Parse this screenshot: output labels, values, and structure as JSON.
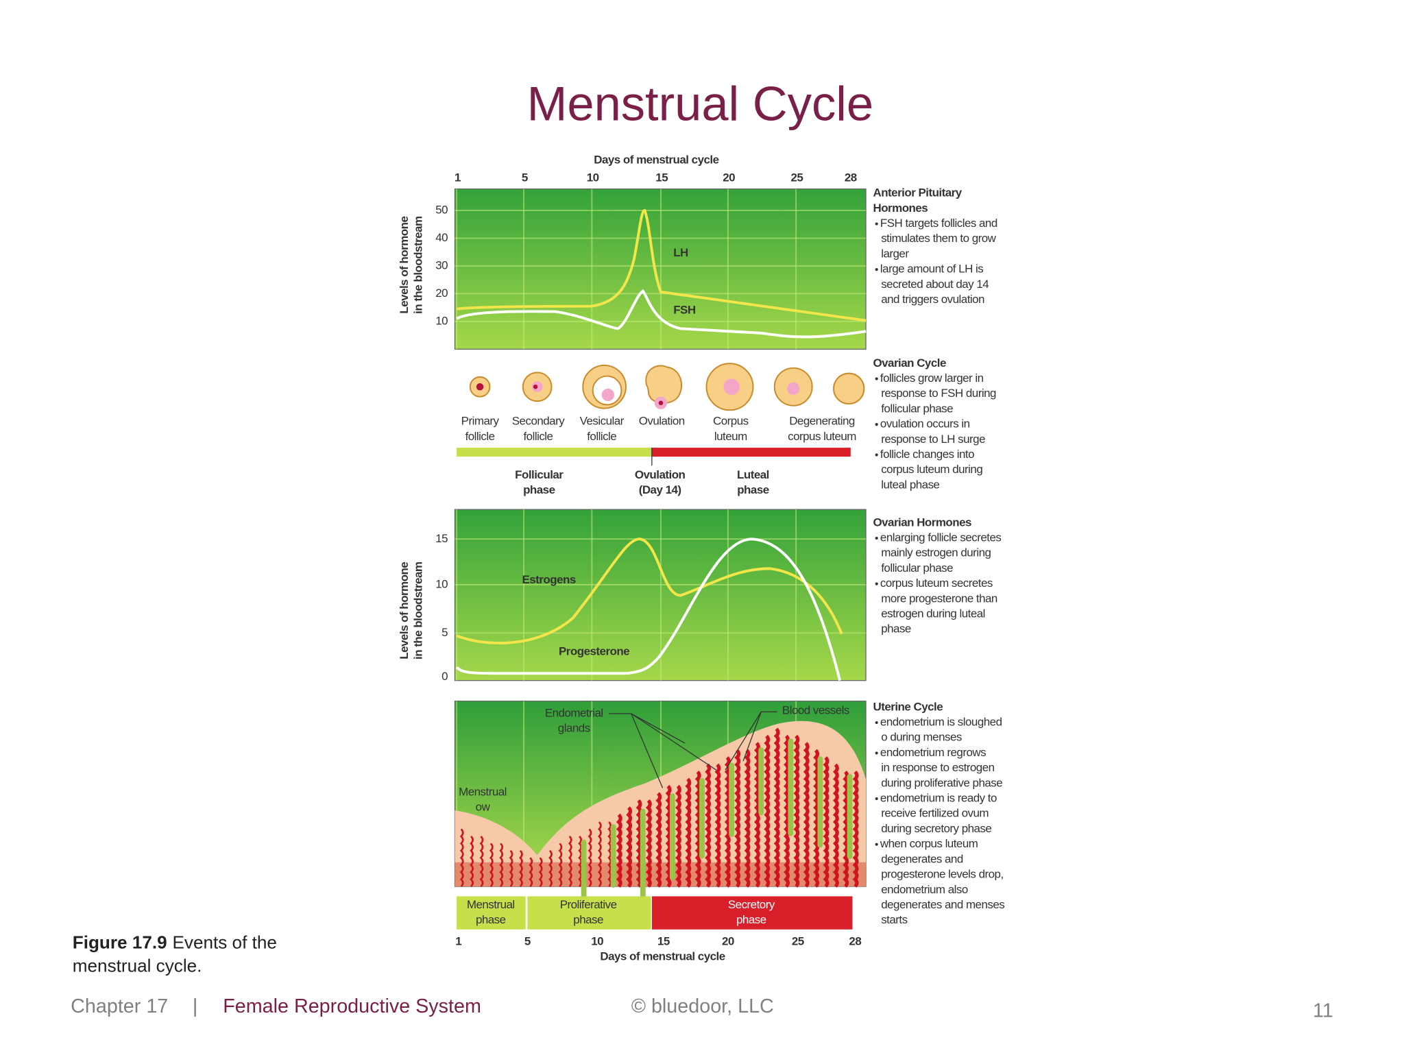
{
  "title": "Menstrual Cycle",
  "figure": {
    "top_axis": {
      "title": "Days of menstrual cycle",
      "ticks": [
        "1",
        "5",
        "10",
        "15",
        "20",
        "25",
        "28"
      ]
    },
    "pituitary_chart": {
      "y_label": [
        "Levels of hormone",
        "in the bloodstream"
      ],
      "yticks": [
        "50",
        "40",
        "30",
        "20",
        "10"
      ],
      "curves": [
        "LH",
        "FSH"
      ]
    },
    "follicles": [
      [
        "Primary",
        "follicle"
      ],
      [
        "Secondary",
        "follicle"
      ],
      [
        "Vesicular",
        "follicle"
      ],
      [
        "Ovulation"
      ],
      [
        "Corpus",
        "luteum"
      ],
      [
        "Degenerating",
        "corpus luteum"
      ]
    ],
    "ovarian_phases": [
      [
        "Follicular",
        "phase"
      ],
      [
        "Ovulation",
        "(Day 14)"
      ],
      [
        "Luteal",
        "phase"
      ]
    ],
    "ovarian_chart": {
      "y_label": [
        "Levels of hormone",
        "in the bloodstream"
      ],
      "yticks": [
        "15",
        "10",
        "5",
        "0"
      ],
      "curves": [
        "Estrogens",
        "Progesterone"
      ]
    },
    "uterine_chart": {
      "glands": [
        "Endometrial",
        "glands"
      ],
      "vessels": [
        "Blood vessels"
      ],
      "flow": [
        "Menstrual",
        "ow"
      ]
    },
    "uterine_phases": [
      [
        "Menstrual",
        "phase"
      ],
      [
        "Proliferative",
        "phase"
      ],
      [
        "Secretory",
        "phase"
      ]
    ],
    "bottom_axis": {
      "title": "Days of menstrual cycle",
      "ticks": [
        "1",
        "5",
        "10",
        "15",
        "20",
        "25",
        "28"
      ]
    }
  },
  "notes": [
    {
      "heading": [
        "Anterior Pituitary",
        "Hormones"
      ],
      "bullets": [
        [
          "FSH targets follicles and",
          "stimulates them to grow",
          "larger"
        ],
        [
          "large amount of LH is",
          "secreted about day 14",
          "and triggers ovulation"
        ]
      ]
    },
    {
      "heading": [
        "Ovarian Cycle"
      ],
      "bullets": [
        [
          "follicles grow larger in",
          "response to FSH during",
          "follicular phase"
        ],
        [
          "ovulation occurs in",
          "response to LH surge"
        ],
        [
          "follicle changes into",
          "corpus luteum during",
          "luteal phase"
        ]
      ]
    },
    {
      "heading": [
        "Ovarian Hormones"
      ],
      "bullets": [
        [
          "enlarging follicle secretes",
          "mainly estrogen during",
          "follicular phase"
        ],
        [
          "corpus luteum secretes",
          "more progesterone than",
          "estrogen during luteal",
          "phase"
        ]
      ]
    },
    {
      "heading": [
        "Uterine Cycle"
      ],
      "bullets": [
        [
          "endometrium is sloughed",
          "o   during menses"
        ],
        [
          "endometrium regrows",
          "in response to estrogen",
          "during proliferative phase"
        ],
        [
          "endometrium is ready to",
          "receive fertilized ovum",
          "during secretory phase"
        ],
        [
          "when corpus luteum",
          "degenerates and",
          "progesterone levels drop,",
          "endometrium also",
          "degenerates and menses",
          "starts"
        ]
      ]
    }
  ],
  "caption": {
    "label": "Figure 17.9",
    "text": [
      "Events of the",
      "menstrual cycle."
    ]
  },
  "footer": {
    "chapter": "Chapter 17",
    "separator": "|",
    "topic": "Female Reproductive System",
    "copyright": "© bluedoor, LLC",
    "page": "11"
  }
}
